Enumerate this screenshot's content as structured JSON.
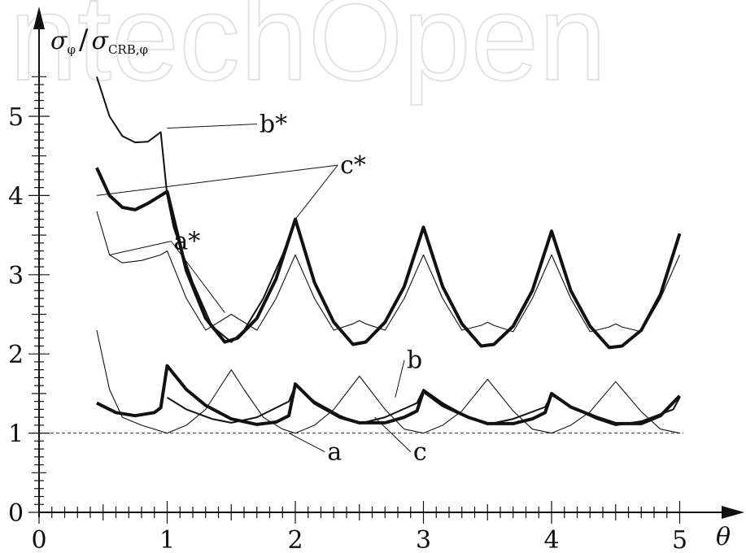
{
  "watermark": "IntechOpen",
  "chart_data": {
    "type": "line",
    "ylabel": "σφ/σCRB,φ",
    "ylabel_parts": {
      "sym1": "σ",
      "sub1": "φ",
      "slash": "/",
      "sym2": "σ",
      "sub2": "CRB,φ"
    },
    "xlabel": "θ",
    "xlim": [
      0,
      5
    ],
    "ylim": [
      0,
      5.5
    ],
    "x_ticks": [
      "0",
      "1",
      "2",
      "3",
      "4",
      "5"
    ],
    "y_ticks": [
      "0",
      "1",
      "2",
      "3",
      "4",
      "5"
    ],
    "reference_line": {
      "y": 1,
      "style": "dashed"
    },
    "series": [
      {
        "name": "a",
        "weight": "thin",
        "x": [
          0.45,
          0.55,
          0.65,
          0.8,
          1.0,
          1.15,
          1.3,
          1.4,
          1.5,
          1.6,
          1.75,
          1.9,
          2.0,
          2.15,
          2.3,
          2.5,
          2.7,
          2.85,
          3.0,
          3.15,
          3.3,
          3.5,
          3.7,
          3.85,
          4.0,
          4.15,
          4.3,
          4.5,
          4.7,
          4.85,
          5.0
        ],
        "y": [
          2.3,
          1.55,
          1.2,
          1.1,
          1.0,
          1.1,
          1.3,
          1.55,
          1.8,
          1.55,
          1.2,
          1.05,
          1.0,
          1.1,
          1.3,
          1.72,
          1.3,
          1.05,
          1.0,
          1.1,
          1.28,
          1.68,
          1.28,
          1.05,
          1.0,
          1.1,
          1.27,
          1.65,
          1.27,
          1.05,
          1.0
        ]
      },
      {
        "name": "b",
        "weight": "medium",
        "x": [
          1.0,
          1.15,
          1.35,
          1.5,
          1.7,
          1.95,
          2.0,
          2.15,
          2.35,
          2.5,
          2.7,
          2.95,
          3.0,
          3.15,
          3.35,
          3.5,
          3.7,
          3.95,
          4.0,
          4.15,
          4.35,
          4.5,
          4.7,
          4.95,
          5.0
        ],
        "y": [
          1.45,
          1.3,
          1.18,
          1.13,
          1.2,
          1.4,
          1.6,
          1.4,
          1.22,
          1.12,
          1.2,
          1.38,
          1.55,
          1.38,
          1.2,
          1.11,
          1.18,
          1.33,
          1.48,
          1.33,
          1.18,
          1.1,
          1.15,
          1.3,
          1.45
        ]
      },
      {
        "name": "c",
        "weight": "thick",
        "x": [
          0.45,
          0.6,
          0.75,
          0.9,
          0.95,
          1.0,
          1.15,
          1.3,
          1.5,
          1.7,
          1.85,
          1.95,
          2.0,
          2.15,
          2.35,
          2.5,
          2.7,
          2.85,
          2.95,
          3.0,
          3.15,
          3.35,
          3.5,
          3.7,
          3.85,
          3.95,
          4.0,
          4.15,
          4.35,
          4.5,
          4.7,
          4.85,
          5.0
        ],
        "y": [
          1.38,
          1.26,
          1.22,
          1.26,
          1.32,
          1.85,
          1.55,
          1.35,
          1.18,
          1.11,
          1.14,
          1.22,
          1.62,
          1.38,
          1.2,
          1.13,
          1.13,
          1.2,
          1.28,
          1.53,
          1.35,
          1.2,
          1.12,
          1.12,
          1.18,
          1.26,
          1.5,
          1.33,
          1.2,
          1.12,
          1.12,
          1.22,
          1.47
        ]
      },
      {
        "name": "a*",
        "weight": "thin",
        "x": [
          0.45,
          0.55,
          0.65,
          0.8,
          0.95,
          1.0,
          1.15,
          1.3,
          1.45,
          1.5,
          1.55,
          1.7,
          1.85,
          2.0,
          2.15,
          2.3,
          2.45,
          2.5,
          2.55,
          2.7,
          2.85,
          3.0,
          3.15,
          3.3,
          3.45,
          3.5,
          3.55,
          3.7,
          3.85,
          4.0,
          4.15,
          4.3,
          4.45,
          4.5,
          4.55,
          4.7,
          4.85,
          5.0
        ],
        "y": [
          3.8,
          3.25,
          3.15,
          3.18,
          3.25,
          3.3,
          2.7,
          2.3,
          2.45,
          2.5,
          2.45,
          2.3,
          2.7,
          3.25,
          2.7,
          2.3,
          2.38,
          2.42,
          2.38,
          2.3,
          2.7,
          3.25,
          2.7,
          2.3,
          2.36,
          2.4,
          2.36,
          2.28,
          2.7,
          3.25,
          2.7,
          2.28,
          2.34,
          2.38,
          2.34,
          2.28,
          2.7,
          3.25
        ]
      },
      {
        "name": "b*",
        "weight": "medium",
        "x": [
          0.45,
          0.55,
          0.65,
          0.75,
          0.85,
          0.95,
          1.0,
          1.05,
          1.2,
          1.35,
          1.5,
          1.6,
          1.75,
          1.9,
          2.0
        ],
        "y": [
          5.5,
          5.0,
          4.75,
          4.67,
          4.68,
          4.8,
          4.0,
          3.6,
          2.9,
          2.35,
          2.15,
          2.3,
          2.7,
          3.25,
          3.7
        ]
      },
      {
        "name": "c*",
        "weight": "thick",
        "x": [
          0.45,
          0.55,
          0.65,
          0.75,
          0.85,
          0.95,
          1.0,
          1.15,
          1.3,
          1.45,
          1.55,
          1.7,
          1.85,
          2.0,
          2.15,
          2.3,
          2.45,
          2.55,
          2.7,
          2.85,
          3.0,
          3.15,
          3.3,
          3.45,
          3.55,
          3.7,
          3.85,
          4.0,
          4.15,
          4.3,
          4.45,
          4.55,
          4.7,
          4.85,
          5.0
        ],
        "y": [
          4.35,
          4.0,
          3.85,
          3.82,
          3.9,
          4.0,
          4.05,
          3.05,
          2.45,
          2.15,
          2.2,
          2.45,
          2.95,
          3.7,
          2.9,
          2.4,
          2.12,
          2.15,
          2.4,
          2.85,
          3.6,
          2.85,
          2.38,
          2.1,
          2.12,
          2.35,
          2.8,
          3.55,
          2.8,
          2.35,
          2.08,
          2.1,
          2.3,
          2.75,
          3.52
        ]
      }
    ],
    "annotations": [
      {
        "text": "b*",
        "label_at": [
          1.72,
          4.8
        ],
        "leader_points": [
          [
            1.0,
            4.85
          ]
        ]
      },
      {
        "text": "c*",
        "label_at": [
          2.35,
          4.28
        ],
        "leader_points": [
          [
            0.45,
            4.0
          ],
          [
            2.0,
            3.7
          ]
        ]
      },
      {
        "text": "a*",
        "label_at": [
          1.05,
          3.32
        ],
        "leader_points": [
          [
            0.55,
            3.25
          ],
          [
            1.45,
            2.52
          ]
        ]
      },
      {
        "text": "b",
        "label_at": [
          2.87,
          1.82
        ],
        "leader_points": [
          [
            2.78,
            1.45
          ]
        ]
      },
      {
        "text": "a",
        "label_at": [
          2.25,
          0.66
        ],
        "leader_points": [
          [
            1.95,
            1.0
          ]
        ]
      },
      {
        "text": "c",
        "label_at": [
          2.92,
          0.66
        ],
        "leader_points": [
          [
            2.62,
            1.2
          ]
        ]
      }
    ]
  }
}
